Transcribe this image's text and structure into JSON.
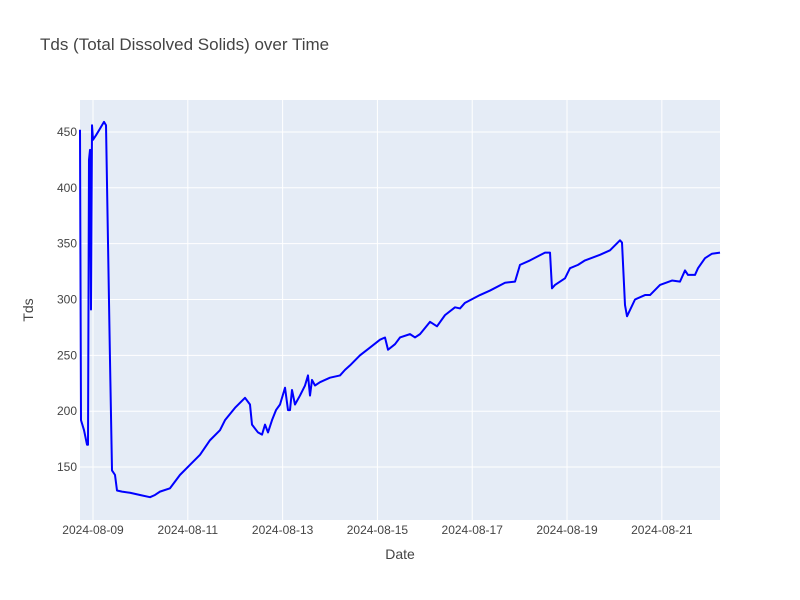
{
  "chart_data": {
    "type": "line",
    "title": "Tds (Total Dissolved Solids) over Time",
    "x_label": "Date",
    "y_label": "Tds",
    "color": "#0000ff",
    "grid": true,
    "x": [
      "2024-08-08 17:25",
      "2024-08-08 17:55",
      "2024-08-08 19:27",
      "2024-08-08 20:58",
      "2024-08-08 21:28",
      "2024-08-08 21:58",
      "2024-08-08 22:29",
      "2024-08-08 22:59",
      "2024-08-08 23:30",
      "2024-08-09 00:00",
      "2024-08-09 01:31",
      "2024-08-09 03:33",
      "2024-08-09 05:34",
      "2024-08-09 06:35",
      "2024-08-09 08:36",
      "2024-08-09 09:37",
      "2024-08-09 11:08",
      "2024-08-09 12:09",
      "2024-08-09 14:41",
      "2024-08-09 18:44",
      "2024-08-09 23:48",
      "2024-08-10 04:52",
      "2024-08-10 07:23",
      "2024-08-10 09:55",
      "2024-08-10 14:59",
      "2024-08-10 20:03",
      "2024-08-11 01:07",
      "2024-08-11 06:10",
      "2024-08-11 11:14",
      "2024-08-11 16:18",
      "2024-08-11 18:50",
      "2024-08-11 23:53",
      "2024-08-12 04:58",
      "2024-08-12 07:29",
      "2024-08-12 08:30",
      "2024-08-12 11:32",
      "2024-08-12 13:34",
      "2024-08-12 15:05",
      "2024-08-12 16:36",
      "2024-08-12 18:38",
      "2024-08-12 20:39",
      "2024-08-12 22:41",
      "2024-08-13 01:13",
      "2024-08-13 02:44",
      "2024-08-13 03:44",
      "2024-08-13 04:45",
      "2024-08-13 06:16",
      "2024-08-13 08:48",
      "2024-08-13 11:20",
      "2024-08-13 12:51",
      "2024-08-13 13:52",
      "2024-08-13 14:53",
      "2024-08-13 16:24",
      "2024-08-13 18:56",
      "2024-08-13 23:59",
      "2024-08-14 05:04",
      "2024-08-14 07:35",
      "2024-08-14 10:07",
      "2024-08-14 15:11",
      "2024-08-14 20:15",
      "2024-08-15 01:19",
      "2024-08-15 03:50",
      "2024-08-15 05:22",
      "2024-08-15 08:54",
      "2024-08-15 11:26",
      "2024-08-15 16:30",
      "2024-08-15 19:02",
      "2024-08-15 21:34",
      "2024-08-16 02:37",
      "2024-08-16 06:10",
      "2024-08-16 10:13",
      "2024-08-16 15:17",
      "2024-08-16 17:49",
      "2024-08-16 20:20",
      "2024-08-17 03:56",
      "2024-08-17 09:00",
      "2024-08-17 16:36",
      "2024-08-17 21:40",
      "2024-08-18 00:11",
      "2024-08-18 05:15",
      "2024-08-18 12:51",
      "2024-08-18 15:23",
      "2024-08-18 16:23",
      "2024-08-18 17:55",
      "2024-08-18 22:58",
      "2024-08-19 01:30",
      "2024-08-19 05:33",
      "2024-08-19 09:06",
      "2024-08-19 16:41",
      "2024-08-19 21:46",
      "2024-08-20 02:49",
      "2024-08-20 03:50",
      "2024-08-20 05:21",
      "2024-08-20 06:22",
      "2024-08-20 10:25",
      "2024-08-20 15:29",
      "2024-08-20 18:01",
      "2024-08-20 23:04",
      "2024-08-21 05:09",
      "2024-08-21 09:12",
      "2024-08-21 11:44",
      "2024-08-21 13:15",
      "2024-08-21 16:47",
      "2024-08-21 18:19",
      "2024-08-21 21:51",
      "2024-08-22 01:24",
      "2024-08-22 05:27"
    ],
    "values": [
      452,
      192,
      183,
      170,
      170,
      425,
      434,
      291,
      456,
      443,
      447,
      453,
      459,
      456,
      246,
      147,
      143,
      129,
      128,
      127,
      125,
      123,
      125,
      128,
      131,
      143,
      152,
      161,
      174,
      183,
      192,
      203,
      212,
      206,
      188,
      181,
      179,
      188,
      181,
      192,
      201,
      206,
      221,
      201,
      201,
      219,
      206,
      214,
      223,
      232,
      214,
      228,
      223,
      226,
      230,
      232,
      237,
      241,
      250,
      257,
      264,
      266,
      255,
      260,
      266,
      269,
      266,
      269,
      280,
      276,
      286,
      293,
      292,
      297,
      304,
      308,
      315,
      316,
      331,
      335,
      342,
      342,
      310,
      313,
      319,
      328,
      331,
      335,
      340,
      344,
      353,
      351,
      295,
      285,
      300,
      304,
      304,
      313,
      317,
      316,
      326,
      322,
      322,
      328,
      337,
      341,
      342
    ],
    "xlim": [
      "2024-08-08 17:25",
      "2024-08-22 05:27"
    ],
    "xticks": [
      "2024-08-09",
      "2024-08-11",
      "2024-08-13",
      "2024-08-15",
      "2024-08-17",
      "2024-08-19",
      "2024-08-21"
    ],
    "ylim": [
      102.6,
      478.6
    ],
    "yticks": [
      150,
      200,
      250,
      300,
      350,
      400,
      450
    ]
  }
}
